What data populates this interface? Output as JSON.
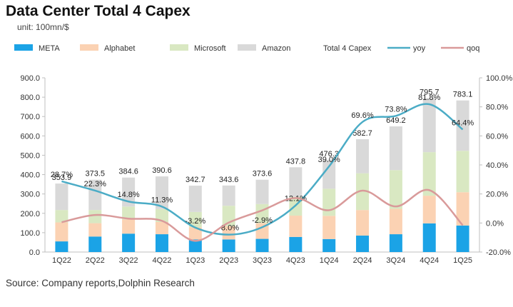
{
  "header": {
    "title": "Data Center Total 4 Capex",
    "unit": "unit: 100mn/$"
  },
  "footer": {
    "source": "Source: Company reports,Dolphin Research"
  },
  "colors": {
    "META": "#1ba3e6",
    "Alphabet": "#fbd2b3",
    "Microsoft": "#d9e8c2",
    "Amazon": "#d9d9d9",
    "yoy": "#4bacc6",
    "qoq": "#d99a9a"
  },
  "chart_data": {
    "type": "bar",
    "stacked": true,
    "categories": [
      "1Q22",
      "2Q22",
      "3Q22",
      "4Q22",
      "1Q23",
      "2Q23",
      "3Q23",
      "4Q23",
      "1Q24",
      "2Q24",
      "3Q24",
      "4Q24",
      "1Q25"
    ],
    "series": [
      {
        "name": "META",
        "values": [
          55,
          80,
          95,
          92,
          65,
          65,
          68,
          78,
          67,
          85,
          92,
          148,
          137
        ]
      },
      {
        "name": "Alphabet",
        "values": [
          98,
          69,
          73,
          63,
          63,
          69,
          81,
          110,
          120,
          132,
          131,
          143,
          172
        ]
      },
      {
        "name": "Microsoft",
        "values": [
          64,
          68,
          67,
          67,
          79,
          105,
          99,
          97,
          140,
          190,
          200,
          225,
          214
        ]
      },
      {
        "name": "Amazon",
        "values": [
          136.9,
          156.5,
          149.6,
          168.6,
          135.7,
          104.6,
          125.6,
          152.8,
          149.3,
          175.7,
          226.2,
          279.7,
          260.1
        ]
      }
    ],
    "totals": {
      "name": "Total 4 Capex",
      "values": [
        353.9,
        373.5,
        384.6,
        390.6,
        342.7,
        343.6,
        373.6,
        437.8,
        476.3,
        582.7,
        649.2,
        795.7,
        783.1
      ],
      "labels": [
        "353.9",
        "373.5",
        "384.6",
        "390.6",
        "342.7",
        "343.6",
        "373.6",
        "437.8",
        "476.3",
        "582.7",
        "649.2",
        "795.7",
        "783.1"
      ]
    },
    "lines": [
      {
        "name": "yoy",
        "axis": "right",
        "values": [
          28.7,
          22.3,
          14.8,
          11.3,
          -3.2,
          -8.0,
          -2.9,
          12.1,
          39.0,
          69.6,
          73.8,
          81.8,
          64.4
        ],
        "labels": [
          "28.7%",
          "22.3%",
          "14.8%",
          "11.3%",
          "-3.2%",
          "-8.0%",
          "-2.9%",
          "12.1%",
          "39.0%",
          "69.6%",
          "73.8%",
          "81.8%",
          "64.4%"
        ]
      },
      {
        "name": "qoq",
        "axis": "right",
        "values": [
          0.5,
          5.5,
          3.0,
          1.5,
          -12.3,
          0.3,
          8.7,
          17.2,
          8.8,
          22.3,
          11.4,
          22.6,
          -1.6
        ]
      }
    ],
    "legend": [
      "META",
      "Alphabet",
      "Microsoft",
      "Amazon",
      "Total 4 Capex",
      "yoy",
      "qoq"
    ],
    "y_left": {
      "min": 0,
      "max": 900,
      "step": 100,
      "ticks": [
        "0.0",
        "100.0",
        "200.0",
        "300.0",
        "400.0",
        "500.0",
        "600.0",
        "700.0",
        "800.0",
        "900.0"
      ]
    },
    "y_right": {
      "min": -20,
      "max": 100,
      "step": 20,
      "ticks": [
        "-20.0%",
        "0.0%",
        "20.0%",
        "40.0%",
        "60.0%",
        "80.0%",
        "100.0%"
      ]
    },
    "grid": false,
    "legend_position": "top"
  }
}
